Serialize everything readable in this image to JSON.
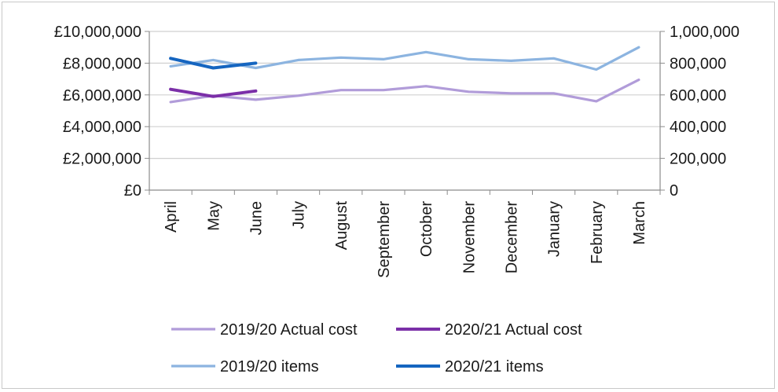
{
  "chart_data": {
    "type": "line",
    "title": "",
    "xlabel": "",
    "ylabel": "",
    "ylabel_right": "",
    "categories": [
      "April",
      "May",
      "June",
      "July",
      "August",
      "September",
      "October",
      "November",
      "December",
      "January",
      "February",
      "March"
    ],
    "ylim": [
      0,
      10000000
    ],
    "ylim_right": [
      0,
      1000000
    ],
    "y_ticks": [
      "£0",
      "£2,000,000",
      "£4,000,000",
      "£6,000,000",
      "£8,000,000",
      "£10,000,000"
    ],
    "y_ticks_right": [
      "0",
      "200,000",
      "400,000",
      "600,000",
      "800,000",
      "1,000,000"
    ],
    "grid": true,
    "legend_position": "bottom",
    "series": [
      {
        "name": "2019/20 Actual cost",
        "axis": "left",
        "color": "#B19CD9",
        "values": [
          5550000,
          5950000,
          5700000,
          5950000,
          6300000,
          6300000,
          6550000,
          6200000,
          6100000,
          6100000,
          5600000,
          6950000
        ]
      },
      {
        "name": "2020/21 Actual cost",
        "axis": "left",
        "color": "#7B2FA8",
        "values": [
          6350000,
          5900000,
          6250000,
          null,
          null,
          null,
          null,
          null,
          null,
          null,
          null,
          null
        ]
      },
      {
        "name": "2019/20 items",
        "axis": "right",
        "color": "#8CB4E0",
        "values": [
          780000,
          820000,
          770000,
          820000,
          835000,
          825000,
          870000,
          825000,
          815000,
          830000,
          760000,
          900000
        ]
      },
      {
        "name": "2020/21 items",
        "axis": "right",
        "color": "#1565C0",
        "values": [
          830000,
          770000,
          800000,
          null,
          null,
          null,
          null,
          null,
          null,
          null,
          null,
          null
        ]
      }
    ]
  }
}
